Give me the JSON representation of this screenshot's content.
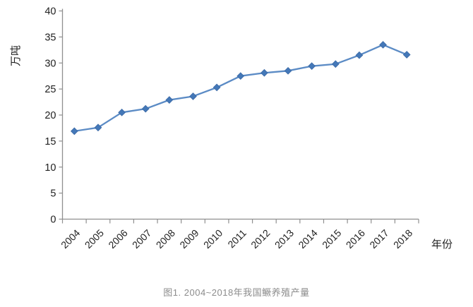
{
  "chart_data": {
    "type": "line",
    "caption": "图1. 2004~2018年我国鳜养殖产量",
    "xlabel": "年份",
    "ylabel": "万吨",
    "categories": [
      "2004",
      "2005",
      "2006",
      "2007",
      "2008",
      "2009",
      "2010",
      "2011",
      "2012",
      "2013",
      "2014",
      "2015",
      "2016",
      "2017",
      "2018"
    ],
    "values": [
      16.9,
      17.6,
      20.5,
      21.2,
      22.9,
      23.6,
      25.3,
      27.5,
      28.1,
      28.5,
      29.4,
      29.8,
      31.5,
      33.5,
      31.6
    ],
    "ylim": [
      0,
      40
    ],
    "ytick_step": 5,
    "grid": false,
    "legend_position": "none",
    "marker": "diamond",
    "colors": {
      "line": "#5b8bc5",
      "marker_fill": "#4478b8",
      "marker_stroke": "#3b69a5",
      "axis": "#8f8f8f",
      "tick_label": "#1f1f1f",
      "axis_title": "#1f1f1f",
      "caption": "#8c8c8c"
    }
  }
}
